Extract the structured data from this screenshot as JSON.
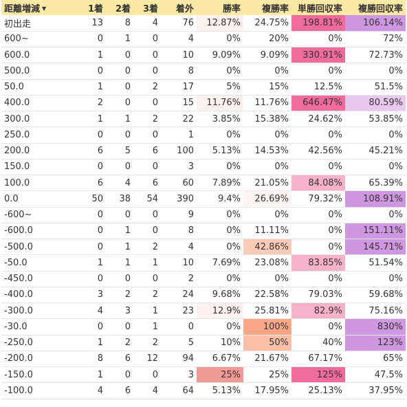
{
  "headers": [
    "距離増減",
    "1着",
    "2着",
    "3着",
    "着外",
    "勝率",
    "複勝率",
    "単勝回収率",
    "複勝回収率"
  ],
  "sort_indicator": "▼",
  "rows": [
    {
      "cells": [
        "初出走",
        "13",
        "8",
        "4",
        "76",
        "12.87%",
        "24.75%",
        "198.81%",
        "106.14%"
      ],
      "colors": {
        "5": "#fdf1f0",
        "7": "#ef6b9b",
        "8": "#cf97e0"
      }
    },
    {
      "cells": [
        "600~",
        "0",
        "1",
        "0",
        "4",
        "0%",
        "20%",
        "0%",
        "72%"
      ],
      "colors": {}
    },
    {
      "cells": [
        "600.0",
        "1",
        "0",
        "0",
        "10",
        "9.09%",
        "9.09%",
        "330.91%",
        "72.73%"
      ],
      "colors": {
        "7": "#ef6b9b"
      }
    },
    {
      "cells": [
        "500.0",
        "0",
        "0",
        "0",
        "8",
        "0%",
        "0%",
        "0%",
        "0%"
      ],
      "colors": {}
    },
    {
      "cells": [
        "50.0",
        "1",
        "0",
        "2",
        "17",
        "5%",
        "15%",
        "12.5%",
        "51.5%"
      ],
      "colors": {}
    },
    {
      "cells": [
        "400.0",
        "2",
        "0",
        "0",
        "15",
        "11.76%",
        "11.76%",
        "646.47%",
        "80.59%"
      ],
      "colors": {
        "5": "#fdf1f0",
        "7": "#ef6b9b",
        "8": "#e8c8ee"
      }
    },
    {
      "cells": [
        "300.0",
        "1",
        "1",
        "2",
        "22",
        "3.85%",
        "15.38%",
        "24.62%",
        "53.85%"
      ],
      "colors": {}
    },
    {
      "cells": [
        "250.0",
        "0",
        "0",
        "0",
        "1",
        "0%",
        "0%",
        "0%",
        "0%"
      ],
      "colors": {}
    },
    {
      "cells": [
        "200.0",
        "6",
        "5",
        "6",
        "100",
        "5.13%",
        "14.53%",
        "42.56%",
        "45.21%"
      ],
      "colors": {}
    },
    {
      "cells": [
        "150.0",
        "0",
        "0",
        "0",
        "3",
        "0%",
        "0%",
        "0%",
        "0%"
      ],
      "colors": {}
    },
    {
      "cells": [
        "100.0",
        "6",
        "4",
        "6",
        "60",
        "7.89%",
        "21.05%",
        "84.08%",
        "65.39%"
      ],
      "colors": {
        "7": "#f7b2cb"
      }
    },
    {
      "cells": [
        "0.0",
        "50",
        "38",
        "54",
        "390",
        "9.4%",
        "26.69%",
        "79.32%",
        "108.91%"
      ],
      "colors": {
        "6": "#fef4f1",
        "8": "#cf97e0"
      }
    },
    {
      "cells": [
        "-600~",
        "0",
        "0",
        "0",
        "9",
        "0%",
        "0%",
        "0%",
        "0%"
      ],
      "colors": {}
    },
    {
      "cells": [
        "-600.0",
        "0",
        "1",
        "0",
        "8",
        "0%",
        "11.11%",
        "0%",
        "151.11%"
      ],
      "colors": {
        "8": "#cf97e0"
      }
    },
    {
      "cells": [
        "-500.0",
        "0",
        "1",
        "2",
        "4",
        "0%",
        "42.86%",
        "0%",
        "145.71%"
      ],
      "colors": {
        "6": "#fccbb8",
        "8": "#cf97e0"
      }
    },
    {
      "cells": [
        "-50.0",
        "1",
        "1",
        "1",
        "10",
        "7.69%",
        "23.08%",
        "83.85%",
        "51.54%"
      ],
      "colors": {
        "7": "#f7b2cb"
      }
    },
    {
      "cells": [
        "-450.0",
        "0",
        "0",
        "0",
        "2",
        "0%",
        "0%",
        "0%",
        "0%"
      ],
      "colors": {}
    },
    {
      "cells": [
        "-400.0",
        "3",
        "2",
        "2",
        "24",
        "9.68%",
        "22.58%",
        "79.03%",
        "59.68%"
      ],
      "colors": {}
    },
    {
      "cells": [
        "-300.0",
        "4",
        "3",
        "1",
        "23",
        "12.9%",
        "25.81%",
        "82.9%",
        "75.16%"
      ],
      "colors": {
        "5": "#fdf1f0",
        "7": "#f7b2cb"
      }
    },
    {
      "cells": [
        "-30.0",
        "0",
        "0",
        "1",
        "0",
        "0%",
        "100%",
        "0%",
        "830%"
      ],
      "colors": {
        "6": "#fba686",
        "8": "#cf97e0"
      }
    },
    {
      "cells": [
        "-250.0",
        "1",
        "2",
        "2",
        "5",
        "10%",
        "50%",
        "40%",
        "123%"
      ],
      "colors": {
        "6": "#fcc0a8",
        "8": "#cf97e0"
      }
    },
    {
      "cells": [
        "-200.0",
        "8",
        "6",
        "12",
        "94",
        "6.67%",
        "21.67%",
        "67.17%",
        "65%"
      ],
      "colors": {}
    },
    {
      "cells": [
        "-150.0",
        "1",
        "0",
        "0",
        "3",
        "25%",
        "25%",
        "125%",
        "47.5%"
      ],
      "colors": {
        "5": "#ef9a94",
        "7": "#ef6b9b"
      }
    },
    {
      "cells": [
        "-100.0",
        "4",
        "6",
        "4",
        "64",
        "5.13%",
        "17.95%",
        "25.13%",
        "37.95%"
      ],
      "colors": {}
    }
  ]
}
